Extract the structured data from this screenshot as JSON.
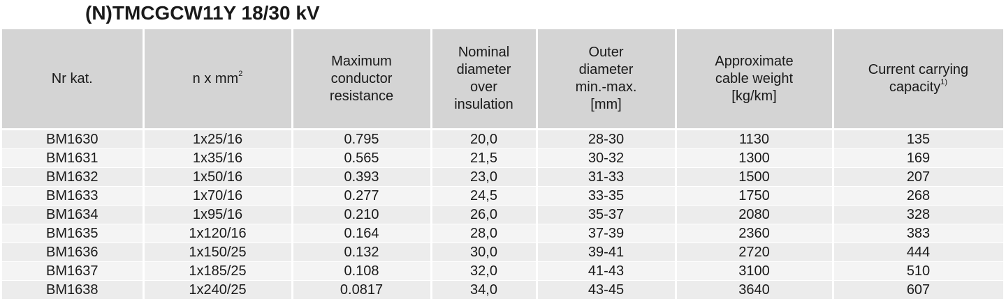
{
  "title": "(N)TMCGCW11Y 18/30 kV",
  "table": {
    "header": [
      {
        "lines": [
          "Nr kat."
        ]
      },
      {
        "lines": [
          "n x mm"
        ],
        "sup": "2"
      },
      {
        "lines": [
          "Maximum",
          "conductor",
          "resistance"
        ]
      },
      {
        "lines": [
          "Nominal",
          "diameter",
          "over",
          "insulation"
        ]
      },
      {
        "lines": [
          "Outer",
          "diameter",
          "min.-max.",
          "[mm]"
        ]
      },
      {
        "lines": [
          "Approximate",
          "cable weight",
          "[kg/km]"
        ]
      },
      {
        "lines": [
          "Current carrying",
          "capacity"
        ],
        "sup": "1)"
      }
    ],
    "rows": [
      [
        "BM1630",
        "1x25/16",
        "0.795",
        "20,0",
        "28-30",
        "1130",
        "135"
      ],
      [
        "BM1631",
        "1x35/16",
        "0.565",
        "21,5",
        "30-32",
        "1300",
        "169"
      ],
      [
        "BM1632",
        "1x50/16",
        "0.393",
        "23,0",
        "31-33",
        "1500",
        "207"
      ],
      [
        "BM1633",
        "1x70/16",
        "0.277",
        "24,5",
        "33-35",
        "1750",
        "268"
      ],
      [
        "BM1634",
        "1x95/16",
        "0.210",
        "26,0",
        "35-37",
        "2080",
        "328"
      ],
      [
        "BM1635",
        "1x120/16",
        "0.164",
        "28,0",
        "37-39",
        "2360",
        "383"
      ],
      [
        "BM1636",
        "1x150/25",
        "0.132",
        "30,0",
        "39-41",
        "2720",
        "444"
      ],
      [
        "BM1637",
        "1x185/25",
        "0.108",
        "32,0",
        "41-43",
        "3100",
        "510"
      ],
      [
        "BM1638",
        "1x240/25",
        "0.0817",
        "34,0",
        "43-45",
        "3640",
        "607"
      ]
    ]
  }
}
